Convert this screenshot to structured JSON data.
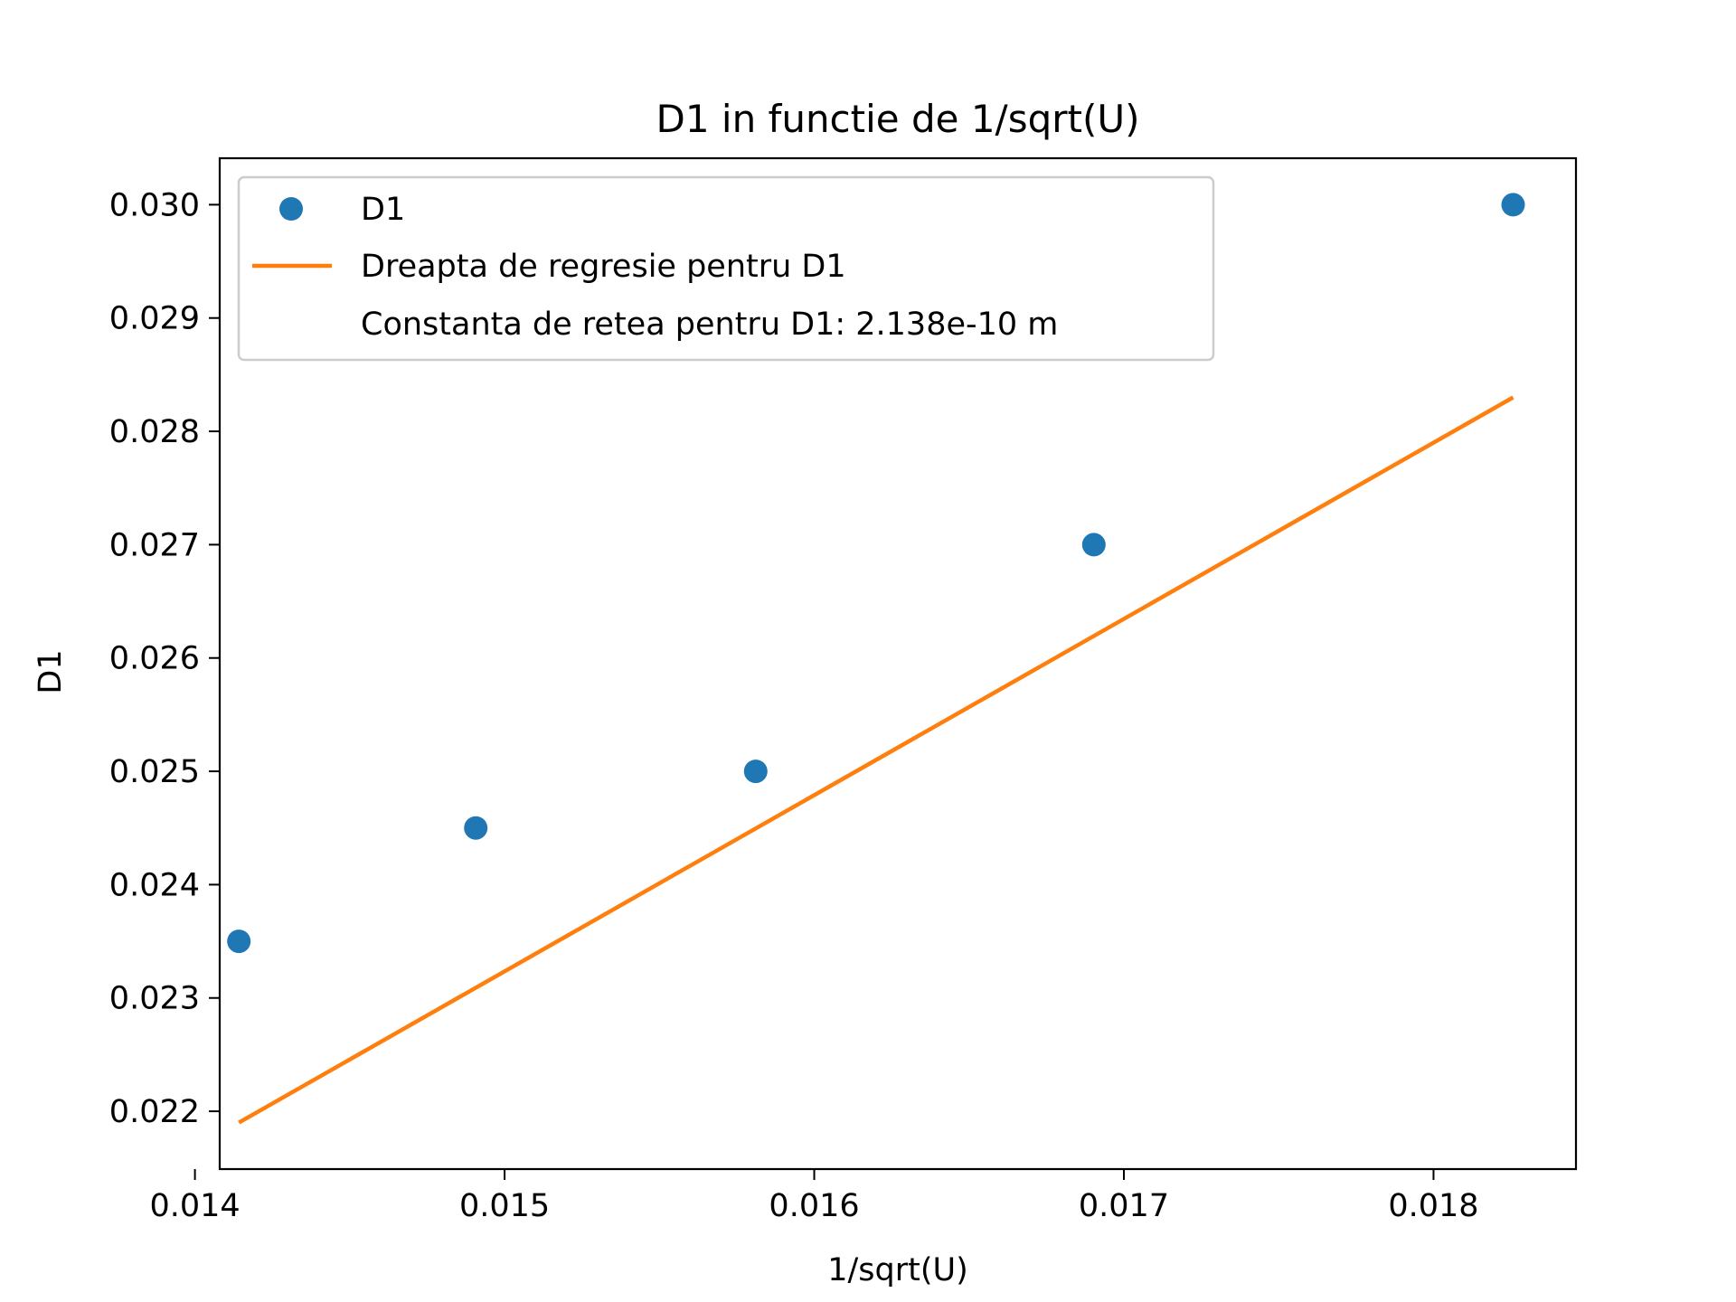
{
  "chart_data": {
    "type": "scatter",
    "title": "D1 in functie de 1/sqrt(U)",
    "xlabel": "1/sqrt(U)",
    "ylabel": "D1",
    "xlim": [
      0.01408,
      0.01846
    ],
    "ylim": [
      0.02149,
      0.03041
    ],
    "x_ticks": [
      0.014,
      0.015,
      0.016,
      0.017,
      0.018
    ],
    "x_tick_labels": [
      "0.014",
      "0.015",
      "0.016",
      "0.017",
      "0.018"
    ],
    "y_ticks": [
      0.022,
      0.023,
      0.024,
      0.025,
      0.026,
      0.027,
      0.028,
      0.029,
      0.03
    ],
    "y_tick_labels": [
      "0.022",
      "0.023",
      "0.024",
      "0.025",
      "0.026",
      "0.027",
      "0.028",
      "0.029",
      "0.030"
    ],
    "grid": false,
    "legend_position": "upper-left",
    "series": [
      {
        "name": "D1",
        "kind": "scatter",
        "color": "#1f77b4",
        "x": [
          0.014142,
          0.014907,
          0.015811,
          0.016903,
          0.018257
        ],
        "y": [
          0.0235,
          0.0245,
          0.025,
          0.027,
          0.03
        ]
      },
      {
        "name": "Dreapta de regresie pentru D1",
        "kind": "line",
        "color": "#ff7f0e",
        "x": [
          0.014142,
          0.018257
        ],
        "y": [
          0.0219,
          0.0283
        ]
      }
    ],
    "annotation": "Constanta de retea pentru D1: 2.138e-10 m"
  }
}
